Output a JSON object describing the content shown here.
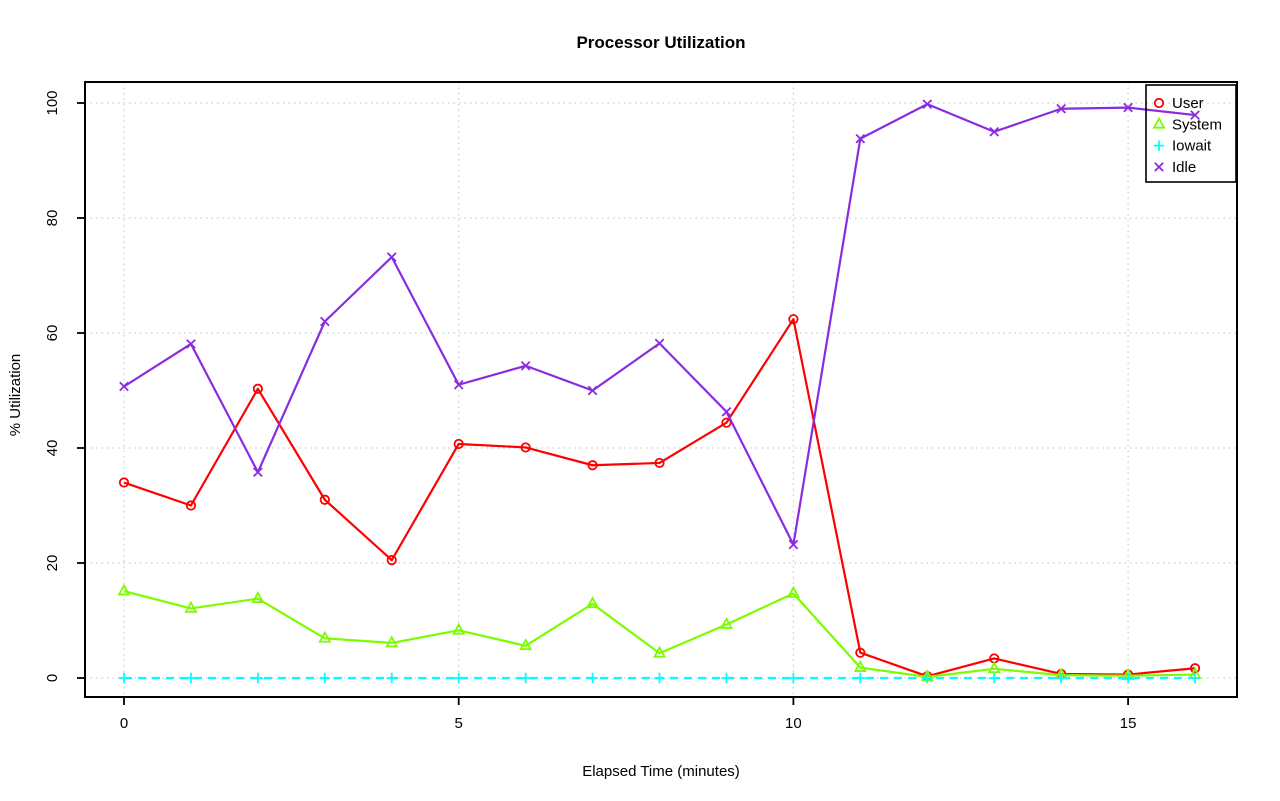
{
  "chart_data": {
    "type": "line",
    "title": "Processor Utilization",
    "xlabel": "Elapsed Time (minutes)",
    "ylabel": "% Utilization",
    "x": [
      0,
      1,
      2,
      3,
      4,
      5,
      6,
      7,
      8,
      9,
      10,
      11,
      12,
      13,
      14,
      15,
      16
    ],
    "series": [
      {
        "name": "User",
        "color": "#ff0000",
        "marker": "circle",
        "line_style": "solid",
        "values": [
          34.0,
          30.0,
          50.3,
          31.0,
          20.5,
          40.7,
          40.1,
          37.0,
          37.4,
          44.4,
          62.4,
          4.4,
          0.3,
          3.4,
          0.7,
          0.6,
          1.7
        ]
      },
      {
        "name": "System",
        "color": "#7cfc00",
        "marker": "triangle",
        "line_style": "solid",
        "values": [
          15.1,
          12.1,
          13.8,
          6.9,
          6.1,
          8.3,
          5.6,
          12.9,
          4.3,
          9.3,
          14.7,
          1.8,
          0.2,
          1.6,
          0.5,
          0.4,
          0.6
        ]
      },
      {
        "name": "Iowait",
        "color": "#00ffff",
        "marker": "plus",
        "line_style": "dashed",
        "values": [
          0,
          0,
          0,
          0,
          0,
          0,
          0,
          0,
          0,
          0,
          0,
          0,
          0,
          0,
          0,
          0,
          0
        ]
      },
      {
        "name": "Idle",
        "color": "#8a2be2",
        "marker": "x",
        "line_style": "solid",
        "values": [
          50.7,
          58.1,
          35.8,
          62.0,
          73.2,
          51.0,
          54.3,
          50.0,
          58.2,
          46.3,
          23.2,
          93.8,
          99.8,
          95.0,
          99.0,
          99.2,
          97.9
        ]
      }
    ],
    "x_ticks": [
      "0",
      "5",
      "10",
      "15"
    ],
    "x_tick_values": [
      0,
      5,
      10,
      15
    ],
    "y_ticks": [
      "0",
      "20",
      "40",
      "60",
      "80",
      "100"
    ],
    "y_tick_values": [
      0,
      20,
      40,
      60,
      80,
      100
    ],
    "xlim": [
      -0.58,
      16.63
    ],
    "ylim": [
      -3.3,
      103.6
    ],
    "grid": true,
    "grid_color": "#cccccc",
    "axis_color": "#000000",
    "legend_position": "top-right",
    "legend_labels": [
      "User",
      "System",
      "Iowait",
      "Idle"
    ]
  }
}
